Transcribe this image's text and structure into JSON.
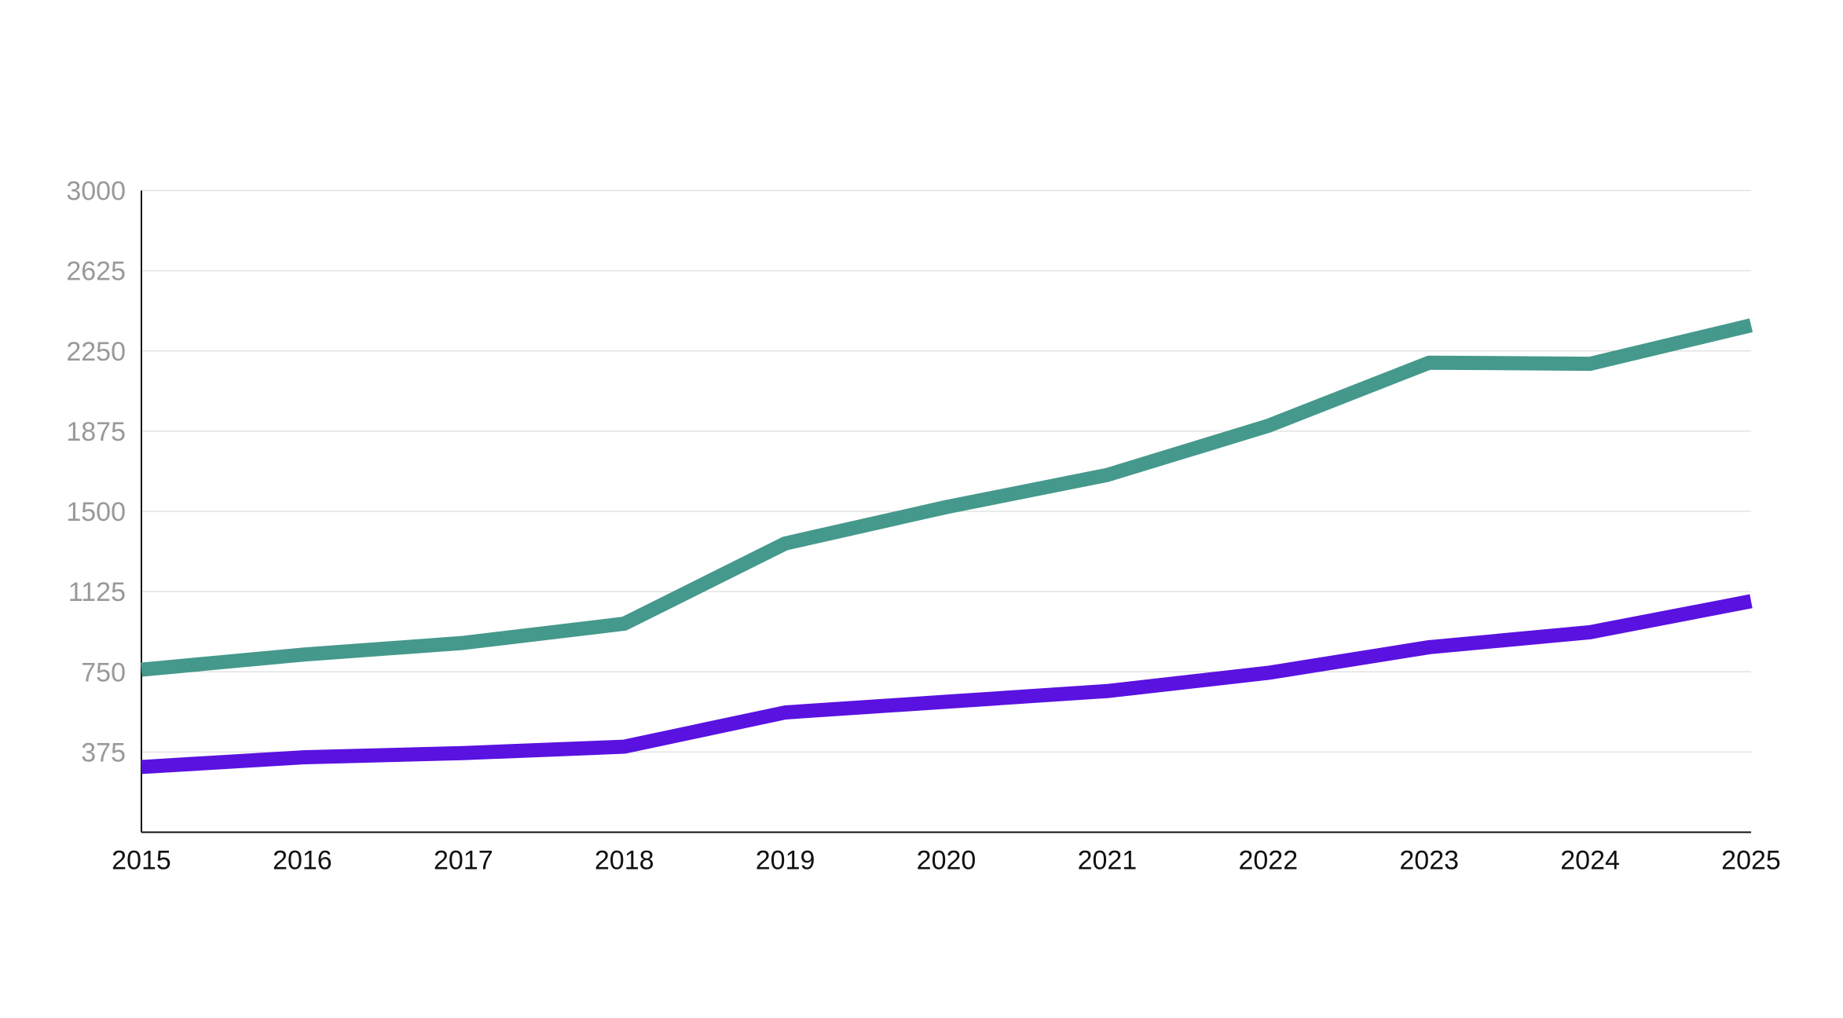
{
  "page": {
    "background_color": "#ffffff"
  },
  "chart_data": {
    "type": "line",
    "x": [
      2015,
      2016,
      2017,
      2018,
      2019,
      2020,
      2021,
      2022,
      2023,
      2024,
      2025
    ],
    "series": [
      {
        "name": "teal",
        "color": "#45998C",
        "values": [
          760,
          830,
          885,
          975,
          1350,
          1520,
          1670,
          1900,
          2195,
          2190,
          2370
        ]
      },
      {
        "name": "purple",
        "color": "#5912E0",
        "values": [
          305,
          350,
          370,
          400,
          560,
          610,
          660,
          745,
          865,
          935,
          1080
        ]
      }
    ],
    "title": "",
    "xlabel": "",
    "ylabel": "",
    "ylim": [
      0,
      3000
    ],
    "yticks": [
      375,
      750,
      1125,
      1500,
      1875,
      2250,
      2625,
      3000
    ],
    "grid": true,
    "legend_position": "none",
    "axis_color": "#111111",
    "grid_color": "#e3e3e3",
    "ytick_color": "#999999",
    "xtick_color": "#111111",
    "line_width": 18
  }
}
